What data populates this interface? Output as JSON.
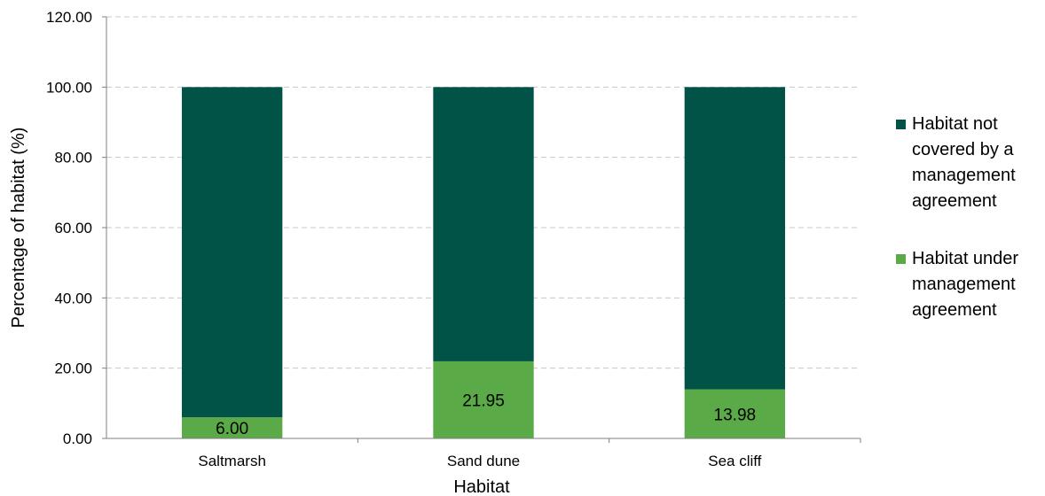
{
  "chart_data": {
    "type": "bar",
    "stacked": true,
    "categories": [
      "Saltmarsh",
      "Sand dune",
      "Sea cliff"
    ],
    "series": [
      {
        "name": "Habitat under management agreement",
        "values": [
          6.0,
          21.95,
          13.98
        ],
        "data_labels": [
          "6.00",
          "21.95",
          "13.98"
        ],
        "color": "#5aab47"
      },
      {
        "name": "Habitat not covered by a management agreement",
        "values": [
          94.0,
          78.05,
          86.02
        ],
        "color": "#005346"
      }
    ],
    "legend_order": [
      1,
      0
    ],
    "legend_lines": [
      [
        "Habitat not",
        "covered by a",
        "management",
        "agreement"
      ],
      [
        "Habitat under",
        "management",
        "agreement"
      ]
    ],
    "xlabel": "Habitat",
    "ylabel": "Percentage of habitat (%)",
    "ylim": [
      0,
      120
    ],
    "yticks": [
      "0.00",
      "20.00",
      "40.00",
      "60.00",
      "80.00",
      "100.00",
      "120.00"
    ],
    "grid": true,
    "legend_position": "right"
  }
}
